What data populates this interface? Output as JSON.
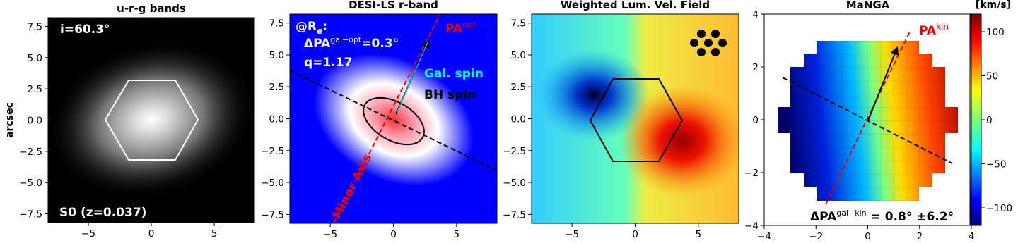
{
  "chart_data": [
    {
      "type": "image",
      "title": "u-r-g bands",
      "ylabel": "arcsec",
      "xlim": [
        -8.2,
        8.2
      ],
      "ylim": [
        -8.2,
        8.2
      ],
      "xticks": [
        {
          "value": -5,
          "label": "−5"
        },
        0,
        5
      ],
      "yticks": [
        {
          "value": -7.5,
          "label": "−7.5"
        },
        {
          "value": -5,
          "label": "−5.0"
        },
        {
          "value": -2.5,
          "label": "−2.5"
        },
        {
          "value": 0,
          "label": "0.0"
        },
        2.5,
        {
          "value": 5,
          "label": "5.0"
        },
        7.5
      ],
      "annotations": [
        "i=60.3°",
        "S0 (z=0.037)"
      ]
    },
    {
      "type": "image",
      "title": "DESI-LS r-band",
      "xlim": [
        -8.2,
        8.2
      ],
      "ylim": [
        -8.2,
        8.2
      ],
      "xticks": [
        {
          "value": -5,
          "label": "−5"
        },
        0,
        5
      ],
      "yticks": [
        {
          "value": -7.5,
          "label": "−7.5"
        },
        {
          "value": -5,
          "label": "−5.0"
        },
        {
          "value": -2.5,
          "label": "−2.5"
        },
        {
          "value": 0,
          "label": "0.0"
        },
        2.5,
        {
          "value": 5,
          "label": "5.0"
        },
        7.5
      ],
      "annotations": [
        [
          "@R",
          "e",
          ":"
        ],
        [
          "ΔPA",
          "gal−opt",
          "=0.3°"
        ],
        "q=1.17",
        [
          "PA",
          "opt"
        ],
        "Gal. spin",
        "BH spin",
        "Minor Axis"
      ]
    },
    {
      "type": "image",
      "title": "Weighted Lum. Vel. Field",
      "xlim": [
        -8.2,
        8.2
      ],
      "ylim": [
        -8.2,
        8.2
      ],
      "xticks": [
        {
          "value": -5,
          "label": "−5"
        },
        0,
        5
      ],
      "yticks": [
        {
          "value": -7.5,
          "label": "−7.5"
        },
        {
          "value": -5,
          "label": "−5.0"
        },
        {
          "value": -2.5,
          "label": "−2.5"
        },
        {
          "value": 0,
          "label": "0.0"
        },
        2.5,
        {
          "value": 5,
          "label": "5.0"
        },
        7.5
      ]
    },
    {
      "type": "image",
      "title": "MaNGA",
      "xlim": [
        -4,
        4
      ],
      "ylim": [
        -4,
        4
      ],
      "xticks": [
        {
          "value": -4,
          "label": "−4"
        },
        {
          "value": -2,
          "label": "−2"
        },
        0,
        2,
        4
      ],
      "yticks": [
        {
          "value": -4,
          "label": "−4"
        },
        {
          "value": -2,
          "label": "−2"
        },
        0,
        2,
        4
      ],
      "annotations": [
        [
          "PA",
          "kin"
        ],
        [
          "ΔPA",
          "gal−kin",
          " = 0.8° ±6.2°"
        ]
      ],
      "colorbar": {
        "label": "[km/s]",
        "lim": [
          -120,
          120
        ],
        "ticks": [
          {
            "value": -100,
            "label": "−100"
          },
          {
            "value": -50,
            "label": "−50"
          },
          0,
          50,
          100
        ]
      }
    }
  ]
}
